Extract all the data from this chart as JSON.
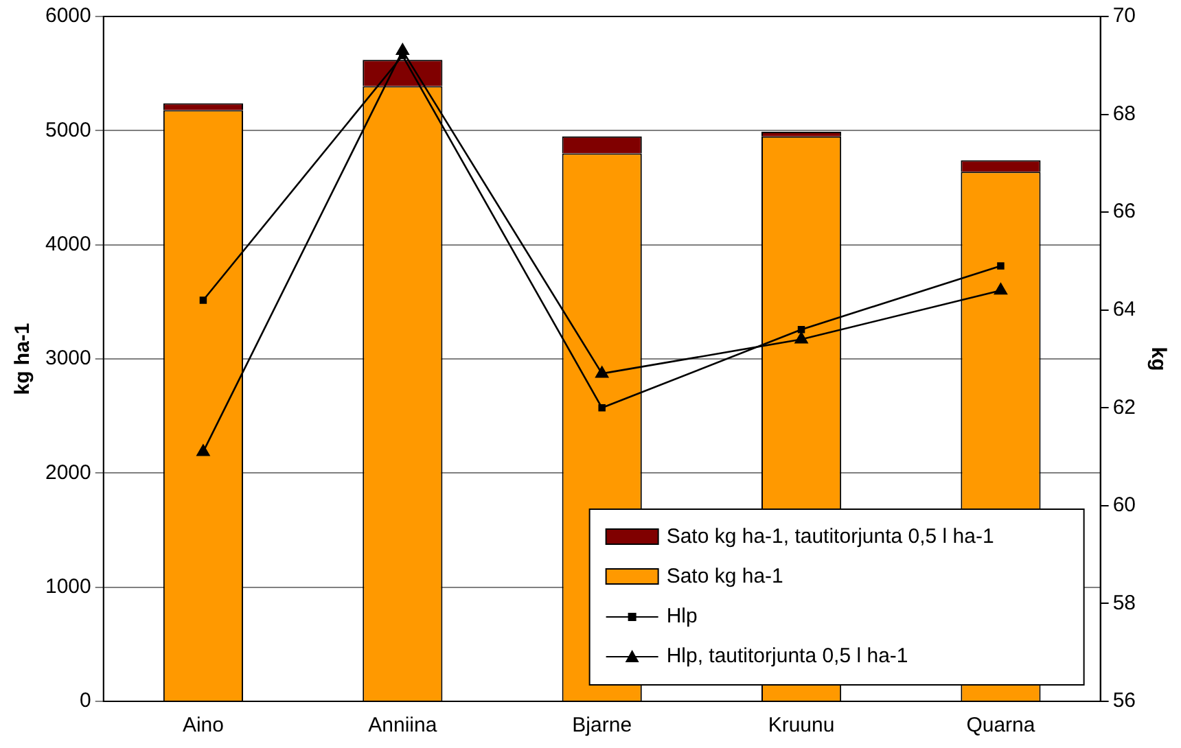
{
  "chart_data": {
    "type": "bar",
    "stacked": true,
    "categories": [
      "Aino",
      "Anniina",
      "Bjarne",
      "Kruunu",
      "Quarna"
    ],
    "ylabel": "kg ha-1",
    "y2label": "kg",
    "series": [
      {
        "name": "Sato kg ha-1",
        "color": "#ff9900",
        "values": [
          5180,
          5390,
          4800,
          4950,
          4640
        ]
      },
      {
        "name": "Sato kg ha-1, tautitorjunta 0,5 l ha-1",
        "color": "#800000",
        "values": [
          60,
          230,
          150,
          40,
          100
        ]
      },
      {
        "name": "Hlp",
        "type": "line",
        "axis": "y2",
        "color": "#000000",
        "marker": "square",
        "values": [
          64.2,
          69.2,
          62.0,
          63.6,
          64.9
        ]
      },
      {
        "name": "Hlp, tautitorjunta 0,5 l ha-1",
        "type": "line",
        "axis": "y2",
        "color": "#000000",
        "marker": "triangle",
        "values": [
          61.1,
          69.3,
          62.7,
          63.4,
          64.4
        ]
      }
    ],
    "ylim": [
      0,
      6000
    ],
    "yticks": [
      0,
      1000,
      2000,
      3000,
      4000,
      5000,
      6000
    ],
    "y2lim": [
      56,
      70
    ],
    "y2ticks": [
      56,
      58,
      60,
      62,
      64,
      66,
      68,
      70
    ],
    "grid": "y",
    "legend": "bottom right"
  }
}
